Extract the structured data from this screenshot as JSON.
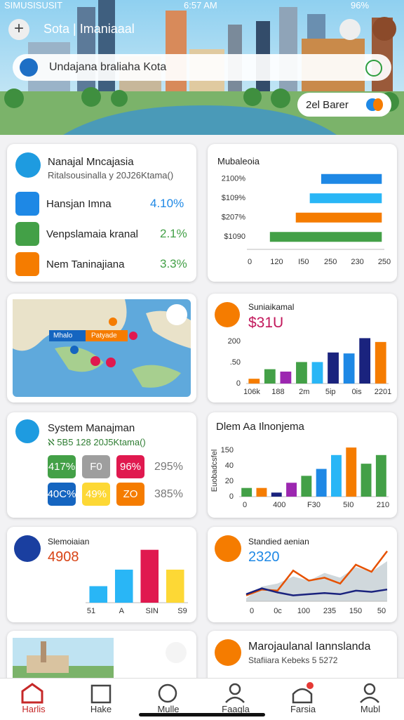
{
  "status": {
    "carrier": "SIMUSISUSIT",
    "time": "6:57 AM",
    "battery": "96%"
  },
  "header": {
    "title": "Sota | Imaniaaal",
    "search": "Undajana braliaha Kota",
    "chip": "2el Barer"
  },
  "cards": [
    {
      "title": "Nanajal Mncajasia",
      "subtitle": "Ritalsousinalla y 20J26Ktama()",
      "items": [
        {
          "label": "Hansjan Imna",
          "value": "4.10%"
        },
        {
          "label": "Venpslamaia kranal",
          "value": "2.1%"
        },
        {
          "label": "Nem Taninajiana",
          "value": "3.3%"
        }
      ]
    },
    {
      "title": "Mubaleoia",
      "chart": {
        "type": "range-bar",
        "xlim": [
          0,
          260
        ],
        "ylabels": [
          "2100%",
          "$109%",
          "$207%",
          "$1090"
        ],
        "xlabels": [
          "0",
          "120",
          "I50",
          "250",
          "230",
          "250"
        ],
        "bars": [
          {
            "start": 138,
            "end": 255,
            "color": "#1e88e5"
          },
          {
            "start": 116,
            "end": 255,
            "color": "#29b6f6"
          },
          {
            "start": 89,
            "end": 255,
            "color": "#f57c00"
          },
          {
            "start": 39,
            "end": 255,
            "color": "#43a047"
          }
        ]
      }
    },
    {
      "map": {
        "labels": [
          "Mhalo",
          "Patyade"
        ]
      }
    },
    {
      "title": "Suniaikamal",
      "value": "$31U",
      "chart": {
        "type": "bar",
        "ylim": [
          0,
          100
        ],
        "ylabels": [
          "200",
          ".50",
          "0"
        ],
        "xlabels": [
          "106k",
          "188",
          "2m",
          "5ip",
          "0is",
          "2201"
        ],
        "values": [
          10,
          30,
          25,
          45,
          45,
          65,
          63,
          95,
          87
        ],
        "colors": [
          "#f57c00",
          "#43a047",
          "#9c27b0",
          "#43a047",
          "#29b6f6",
          "#1a237e",
          "#1e88e5",
          "#1a237e",
          "#f57c00"
        ]
      }
    },
    {
      "title": "System Manajman",
      "subtitle": "ℵ 5B5 128 20J5Ktama()",
      "tiles": [
        {
          "label": "417%",
          "color": "#43a047"
        },
        {
          "label": "F0",
          "color": "#9e9e9e"
        },
        {
          "label": "96%",
          "color": "#e0194f"
        },
        {
          "label": "40C%",
          "color": "#1565c0"
        },
        {
          "label": "49%",
          "color": "#fdd835"
        },
        {
          "label": "ZO",
          "color": "#f57c00"
        }
      ],
      "side": [
        "295%",
        "385%"
      ]
    },
    {
      "title": "Dlem Aa Ilnonjema",
      "chart": {
        "type": "bar",
        "ylim": [
          0,
          90
        ],
        "ylabel": "Euobadcsfel",
        "ylabels": [
          "150",
          "40",
          "20",
          "0"
        ],
        "xlabels": [
          "0",
          "400",
          "F30",
          "5I0",
          "210"
        ],
        "values": [
          15,
          15,
          7,
          24,
          36,
          48,
          72,
          85,
          57,
          72
        ],
        "colors": [
          "#43a047",
          "#f57c00",
          "#1a237e",
          "#9c27b0",
          "#43a047",
          "#1e88e5",
          "#29b6f6",
          "#f57c00",
          "#43a047",
          "#43a047"
        ]
      }
    },
    {
      "title": "Slemoiaian",
      "value": "4908",
      "chart": {
        "type": "bar",
        "ylim": [
          0,
          85
        ],
        "xlabels": [
          "51",
          "A",
          "SIN",
          "S9"
        ],
        "values": [
          25,
          50,
          80,
          50
        ],
        "colors": [
          "#29b6f6",
          "#29b6f6",
          "#e0194f",
          "#fdd835"
        ]
      }
    },
    {
      "title": "Standied aenian",
      "value": "2320",
      "chart": {
        "type": "line",
        "ylim": [
          0,
          100
        ],
        "xlabels": [
          "0",
          "0c",
          "100",
          "235",
          "150",
          "50"
        ],
        "area": {
          "color": "#b0bec5",
          "values": [
            5,
            25,
            30,
            42,
            35,
            48,
            40,
            58,
            50,
            68
          ]
        },
        "series": [
          {
            "color": "#e65100",
            "values": [
              10,
              20,
              18,
              52,
              35,
              40,
              30,
              62,
              50,
              85
            ]
          },
          {
            "color": "#1a237e",
            "values": [
              12,
              22,
              15,
              10,
              12,
              14,
              12,
              18,
              16,
              20
            ]
          }
        ]
      }
    },
    {
      "image": true
    },
    {
      "title": "Marojaulanal Iannslanda",
      "subtitle": "Stafiiara Kebeks 5 5272"
    }
  ],
  "nav": [
    "Harlis",
    "Hake",
    "Mulle",
    "Faagla",
    "Farsia",
    "Mubl"
  ]
}
